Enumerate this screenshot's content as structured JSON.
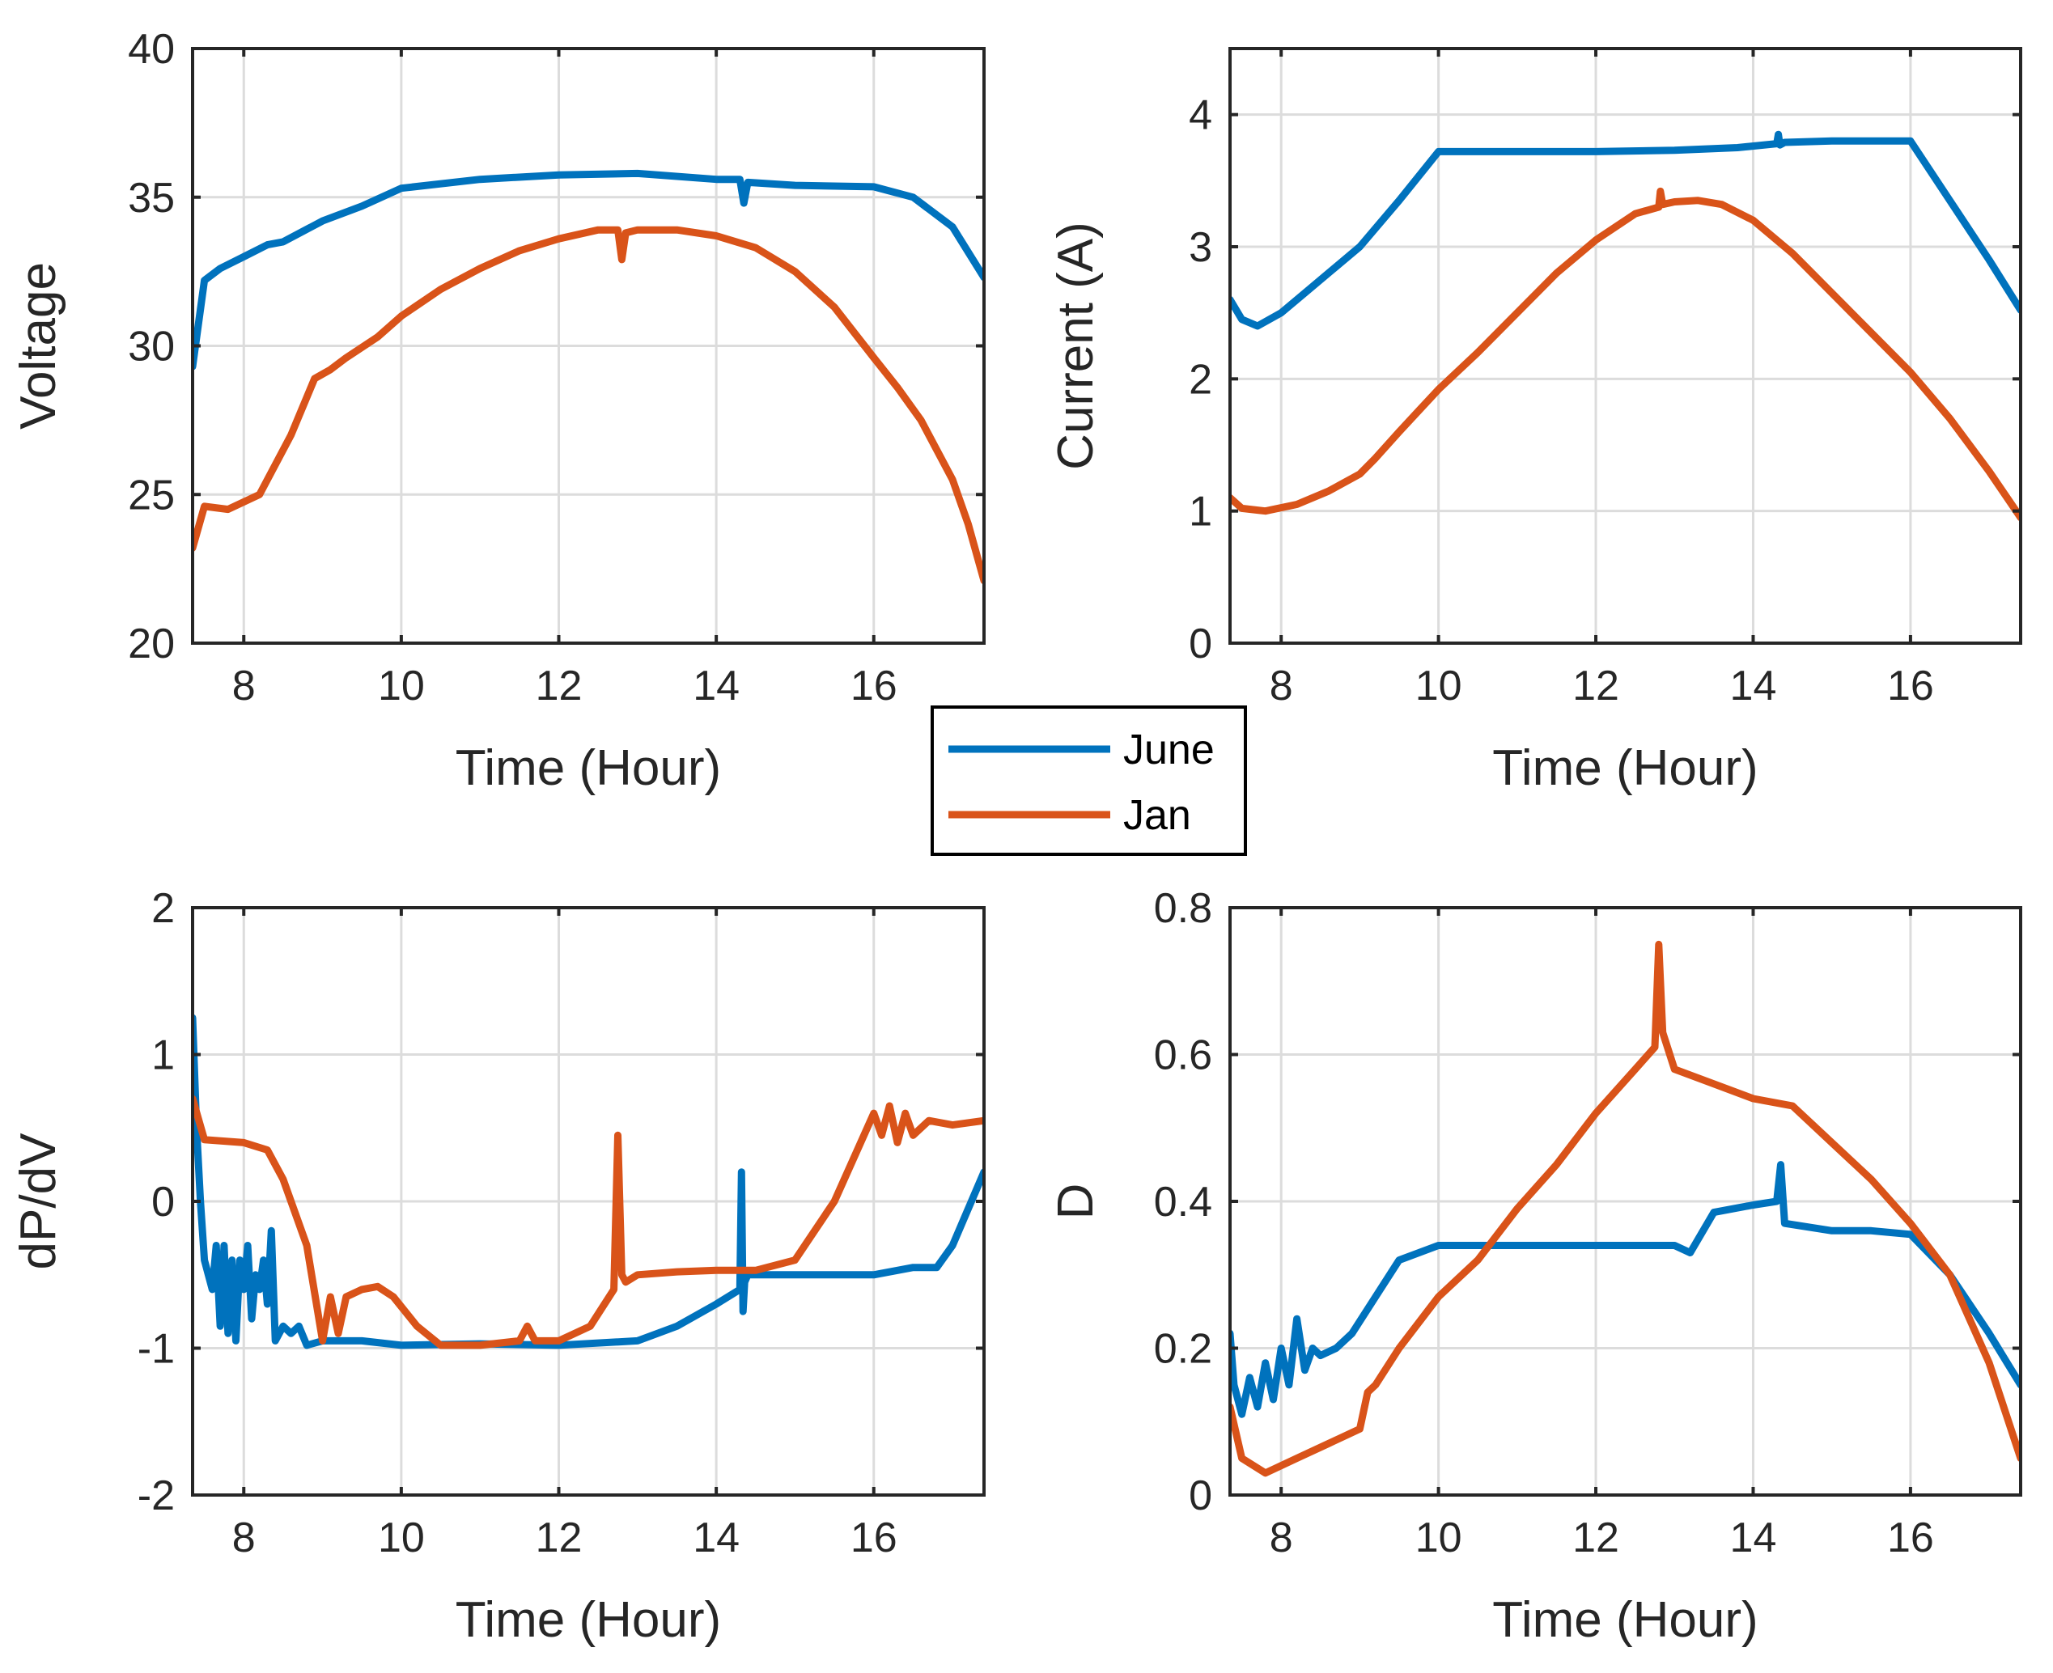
{
  "colors": {
    "june": "#0072BD",
    "jan": "#D95319"
  },
  "legend": {
    "entries": [
      {
        "name": "June",
        "color": "#0072BD"
      },
      {
        "name": "Jan",
        "color": "#D95319"
      }
    ]
  },
  "chart_data": [
    {
      "type": "line",
      "xlabel": "Time (Hour)",
      "ylabel": "Voltage",
      "xlim": [
        7.35,
        17.4
      ],
      "ylim": [
        20,
        40
      ],
      "xticks": [
        8,
        10,
        12,
        14,
        16
      ],
      "yticks": [
        20,
        25,
        30,
        35,
        40
      ],
      "ytick_labels": [
        "20",
        "25",
        "30",
        "35",
        "40"
      ],
      "grid": true,
      "series": [
        {
          "name": "June",
          "color": "#0072BD",
          "x": [
            7.35,
            7.5,
            7.7,
            8.0,
            8.3,
            8.5,
            9.0,
            9.5,
            10.0,
            11.0,
            12.0,
            13.0,
            14.0,
            14.3,
            14.35,
            14.4,
            15.0,
            16.0,
            16.5,
            17.0,
            17.4
          ],
          "y": [
            29.3,
            32.2,
            32.6,
            33.0,
            33.4,
            33.5,
            34.2,
            34.7,
            35.3,
            35.6,
            35.75,
            35.8,
            35.6,
            35.6,
            34.8,
            35.5,
            35.4,
            35.35,
            35.0,
            34.0,
            32.3
          ]
        },
        {
          "name": "Jan",
          "color": "#D95319",
          "x": [
            7.35,
            7.5,
            7.8,
            8.2,
            8.6,
            8.9,
            9.1,
            9.3,
            9.7,
            10.0,
            10.5,
            11.0,
            11.5,
            12.0,
            12.5,
            12.75,
            12.8,
            12.85,
            13.0,
            13.5,
            14.0,
            14.5,
            15.0,
            15.5,
            16.0,
            16.3,
            16.6,
            17.0,
            17.2,
            17.4
          ],
          "y": [
            23.2,
            24.6,
            24.5,
            25.0,
            27.0,
            28.9,
            29.2,
            29.6,
            30.3,
            31.0,
            31.9,
            32.6,
            33.2,
            33.6,
            33.9,
            33.9,
            32.9,
            33.8,
            33.9,
            33.9,
            33.7,
            33.3,
            32.5,
            31.3,
            29.6,
            28.6,
            27.5,
            25.5,
            24.0,
            22.1
          ]
        }
      ]
    },
    {
      "type": "line",
      "xlabel": "Time (Hour)",
      "ylabel": "Current (A)",
      "xlim": [
        7.35,
        17.4
      ],
      "ylim": [
        0,
        4.5
      ],
      "xticks": [
        8,
        10,
        12,
        14,
        16
      ],
      "yticks": [
        0,
        1,
        2,
        3,
        4
      ],
      "ytick_labels": [
        "0",
        "1",
        "2",
        "3",
        "4"
      ],
      "grid": true,
      "series": [
        {
          "name": "June",
          "color": "#0072BD",
          "x": [
            7.35,
            7.5,
            7.7,
            8.0,
            8.3,
            8.6,
            9.0,
            9.5,
            10.0,
            11.0,
            12.0,
            13.0,
            13.8,
            14.3,
            14.32,
            14.34,
            14.4,
            15.0,
            16.0,
            16.5,
            17.0,
            17.4
          ],
          "y": [
            2.6,
            2.45,
            2.4,
            2.5,
            2.65,
            2.8,
            3.0,
            3.35,
            3.72,
            3.72,
            3.72,
            3.73,
            3.75,
            3.78,
            3.85,
            3.77,
            3.79,
            3.8,
            3.8,
            3.35,
            2.9,
            2.52
          ]
        },
        {
          "name": "Jan",
          "color": "#D95319",
          "x": [
            7.35,
            7.5,
            7.8,
            8.2,
            8.6,
            9.0,
            9.2,
            9.5,
            10.0,
            10.5,
            11.0,
            11.5,
            12.0,
            12.5,
            12.8,
            12.82,
            12.85,
            13.0,
            13.3,
            13.6,
            14.0,
            14.5,
            15.0,
            15.5,
            16.0,
            16.5,
            17.0,
            17.4
          ],
          "y": [
            1.1,
            1.02,
            1.0,
            1.05,
            1.15,
            1.28,
            1.4,
            1.6,
            1.92,
            2.2,
            2.5,
            2.8,
            3.05,
            3.25,
            3.3,
            3.42,
            3.32,
            3.34,
            3.35,
            3.32,
            3.2,
            2.95,
            2.65,
            2.35,
            2.05,
            1.7,
            1.3,
            0.95
          ]
        }
      ]
    },
    {
      "type": "line",
      "xlabel": "Time (Hour)",
      "ylabel": "dP/dV",
      "xlim": [
        7.35,
        17.4
      ],
      "ylim": [
        -2,
        2
      ],
      "xticks": [
        8,
        10,
        12,
        14,
        16
      ],
      "yticks": [
        -2,
        -1,
        0,
        1,
        2
      ],
      "ytick_labels": [
        "-2",
        "-1",
        "0",
        "1",
        "2"
      ],
      "grid": true,
      "series": [
        {
          "name": "June",
          "color": "#0072BD",
          "x": [
            7.35,
            7.4,
            7.45,
            7.5,
            7.6,
            7.65,
            7.7,
            7.75,
            7.8,
            7.85,
            7.9,
            7.95,
            8.0,
            8.05,
            8.1,
            8.15,
            8.2,
            8.25,
            8.3,
            8.35,
            8.4,
            8.5,
            8.6,
            8.7,
            8.8,
            9.0,
            9.5,
            10.0,
            11.0,
            12.0,
            13.0,
            13.5,
            14.0,
            14.3,
            14.32,
            14.34,
            14.36,
            14.4,
            15.0,
            16.0,
            16.5,
            16.8,
            17.0,
            17.2,
            17.4
          ],
          "y": [
            1.25,
            0.5,
            0.0,
            -0.4,
            -0.6,
            -0.3,
            -0.85,
            -0.3,
            -0.9,
            -0.4,
            -0.95,
            -0.4,
            -0.6,
            -0.3,
            -0.8,
            -0.5,
            -0.6,
            -0.4,
            -0.7,
            -0.2,
            -0.95,
            -0.85,
            -0.9,
            -0.85,
            -0.98,
            -0.95,
            -0.95,
            -0.98,
            -0.97,
            -0.98,
            -0.95,
            -0.85,
            -0.7,
            -0.6,
            0.2,
            -0.75,
            -0.55,
            -0.5,
            -0.5,
            -0.5,
            -0.45,
            -0.45,
            -0.3,
            -0.05,
            0.2
          ]
        },
        {
          "name": "Jan",
          "color": "#D95319",
          "x": [
            7.35,
            7.5,
            8.0,
            8.3,
            8.5,
            8.8,
            9.0,
            9.1,
            9.2,
            9.3,
            9.5,
            9.7,
            9.9,
            10.2,
            10.5,
            11.0,
            11.5,
            11.6,
            11.7,
            12.0,
            12.4,
            12.7,
            12.75,
            12.8,
            12.85,
            13.0,
            13.5,
            14.0,
            14.5,
            15.0,
            15.5,
            16.0,
            16.1,
            16.2,
            16.3,
            16.4,
            16.5,
            16.7,
            17.0,
            17.4
          ],
          "y": [
            0.7,
            0.42,
            0.4,
            0.35,
            0.15,
            -0.3,
            -0.95,
            -0.65,
            -0.9,
            -0.65,
            -0.6,
            -0.58,
            -0.65,
            -0.85,
            -0.98,
            -0.98,
            -0.95,
            -0.85,
            -0.95,
            -0.95,
            -0.85,
            -0.6,
            0.45,
            -0.5,
            -0.55,
            -0.5,
            -0.48,
            -0.47,
            -0.47,
            -0.4,
            0.0,
            0.6,
            0.45,
            0.65,
            0.4,
            0.6,
            0.45,
            0.55,
            0.52,
            0.55
          ]
        }
      ]
    },
    {
      "type": "line",
      "xlabel": "Time (Hour)",
      "ylabel": "D",
      "xlim": [
        7.35,
        17.4
      ],
      "ylim": [
        0,
        0.8
      ],
      "xticks": [
        8,
        10,
        12,
        14,
        16
      ],
      "yticks": [
        0,
        0.2,
        0.4,
        0.6,
        0.8
      ],
      "ytick_labels": [
        "0",
        "0.2",
        "0.4",
        "0.6",
        "0.8"
      ],
      "grid": true,
      "series": [
        {
          "name": "June",
          "color": "#0072BD",
          "x": [
            7.35,
            7.4,
            7.5,
            7.6,
            7.7,
            7.8,
            7.9,
            8.0,
            8.1,
            8.2,
            8.3,
            8.4,
            8.5,
            8.7,
            8.9,
            9.2,
            9.5,
            10.0,
            10.5,
            11.0,
            12.0,
            13.0,
            13.2,
            13.5,
            14.0,
            14.3,
            14.35,
            14.4,
            15.0,
            15.5,
            16.0,
            16.5,
            17.0,
            17.4
          ],
          "y": [
            0.22,
            0.15,
            0.11,
            0.16,
            0.12,
            0.18,
            0.13,
            0.2,
            0.15,
            0.24,
            0.17,
            0.2,
            0.19,
            0.2,
            0.22,
            0.27,
            0.32,
            0.34,
            0.34,
            0.34,
            0.34,
            0.34,
            0.33,
            0.385,
            0.395,
            0.4,
            0.45,
            0.37,
            0.36,
            0.36,
            0.355,
            0.3,
            0.22,
            0.15
          ]
        },
        {
          "name": "Jan",
          "color": "#D95319",
          "x": [
            7.35,
            7.5,
            7.8,
            8.2,
            8.6,
            9.0,
            9.1,
            9.2,
            9.5,
            10.0,
            10.5,
            11.0,
            11.5,
            12.0,
            12.5,
            12.75,
            12.8,
            12.85,
            13.0,
            13.5,
            14.0,
            14.5,
            15.0,
            15.5,
            16.0,
            16.5,
            17.0,
            17.4
          ],
          "y": [
            0.12,
            0.05,
            0.03,
            0.05,
            0.07,
            0.09,
            0.14,
            0.15,
            0.2,
            0.27,
            0.32,
            0.39,
            0.45,
            0.52,
            0.58,
            0.61,
            0.75,
            0.63,
            0.58,
            0.56,
            0.54,
            0.53,
            0.48,
            0.43,
            0.37,
            0.3,
            0.18,
            0.05
          ]
        }
      ]
    }
  ]
}
